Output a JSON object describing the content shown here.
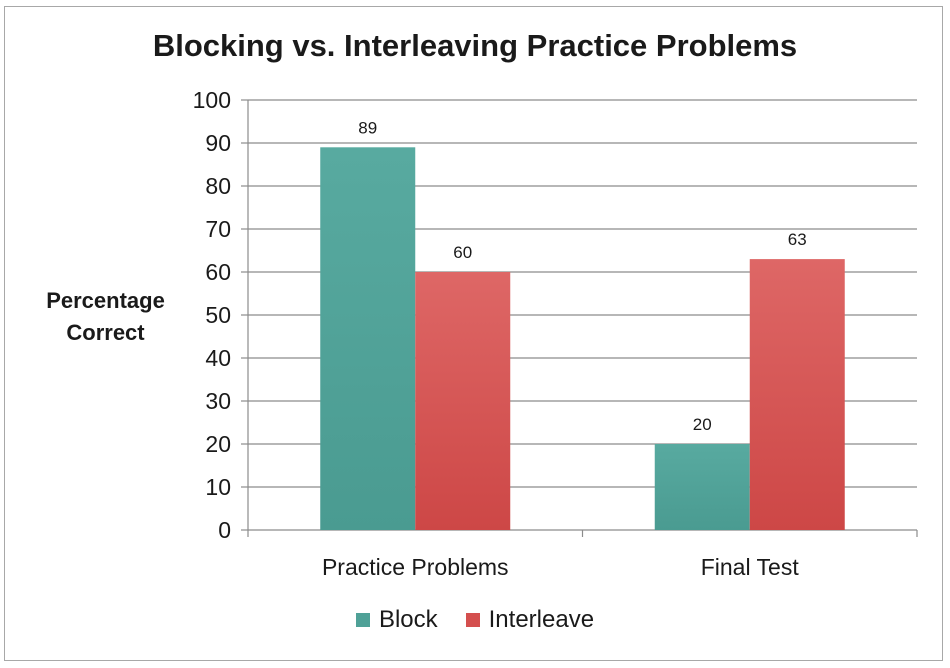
{
  "chart_data": {
    "type": "bar",
    "title": "Blocking vs. Interleaving Practice Problems",
    "ylabel": "Percentage Correct",
    "xlabel": "",
    "categories": [
      "Practice Problems",
      "Final Test"
    ],
    "series": [
      {
        "name": "Block",
        "values": [
          89,
          20
        ],
        "color": "#4fa197"
      },
      {
        "name": "Interleave",
        "values": [
          60,
          63
        ],
        "color": "#d44f4e"
      }
    ],
    "ylim": [
      0,
      100
    ],
    "yticks": [
      0,
      10,
      20,
      30,
      40,
      50,
      60,
      70,
      80,
      90,
      100
    ],
    "grid": true,
    "legend_position": "bottom"
  }
}
